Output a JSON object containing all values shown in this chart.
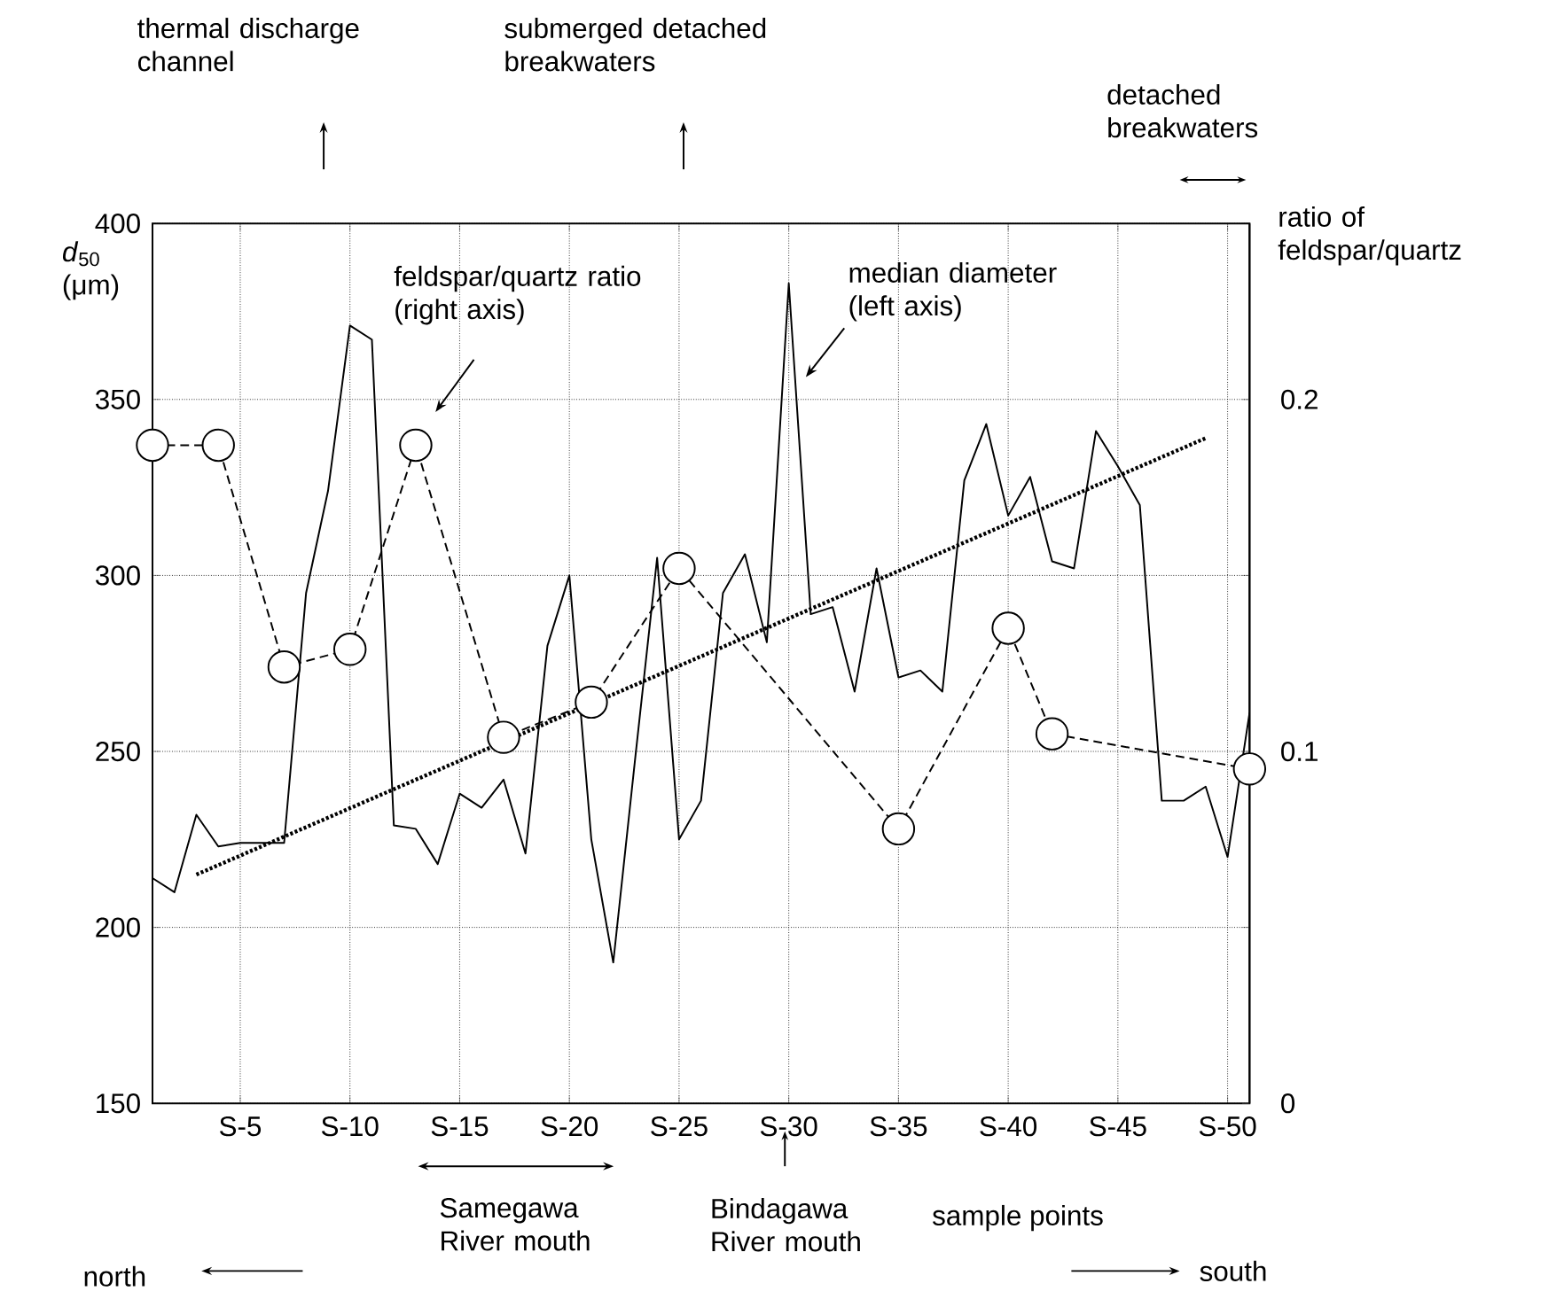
{
  "chart_data": {
    "type": "line",
    "xlabel": "sample points",
    "ylabel": "*d*$_{50}$ (μm)",
    "y2label": "ratio of feldspar/quartz",
    "categories": [
      null,
      null,
      null,
      null,
      "S-5",
      null,
      null,
      null,
      null,
      "S-10",
      null,
      null,
      null,
      null,
      "S-15",
      null,
      null,
      null,
      null,
      "S-20",
      null,
      null,
      null,
      null,
      "S-25",
      null,
      null,
      null,
      null,
      "S-30",
      null,
      null,
      null,
      null,
      "S-35",
      null,
      null,
      null,
      null,
      "S-40",
      null,
      null,
      null,
      null,
      "S-45",
      null,
      null,
      null,
      null,
      "S-50",
      null
    ],
    "series": [
      {
        "color": "#000000",
        "line_style": "solid",
        "marker": "none",
        "values": [
          214,
          210,
          232,
          223,
          224,
          224,
          224,
          295,
          324,
          371,
          367,
          229,
          228,
          218,
          238,
          234,
          242,
          221,
          280,
          300,
          225,
          190,
          248,
          305,
          225,
          236,
          295,
          306,
          281,
          383,
          289,
          291,
          267,
          302,
          271,
          273,
          267,
          327,
          343,
          317,
          328,
          304,
          302,
          341,
          331,
          320,
          236,
          236,
          240,
          220,
          261
        ]
      },
      {
        "color": "#000000",
        "line_style": "dashed",
        "marker": "circle",
        "axis": "y2",
        "values": [
          0.187,
          null,
          null,
          0.187,
          null,
          null,
          0.124,
          null,
          null,
          0.129,
          null,
          null,
          0.187,
          null,
          null,
          null,
          0.104,
          null,
          null,
          null,
          0.114,
          null,
          null,
          null,
          0.152,
          null,
          null,
          null,
          null,
          null,
          null,
          null,
          null,
          null,
          0.078,
          null,
          null,
          null,
          null,
          0.135,
          null,
          0.105,
          null,
          null,
          null,
          null,
          null,
          null,
          null,
          null,
          0.095
        ]
      },
      {
        "color": "#000000",
        "line_style": "dotted",
        "marker": "none",
        "values": [
          null,
          null,
          215,
          null,
          null,
          null,
          null,
          null,
          null,
          null,
          null,
          null,
          null,
          null,
          null,
          null,
          null,
          null,
          null,
          null,
          null,
          null,
          null,
          null,
          null,
          null,
          null,
          null,
          null,
          null,
          null,
          null,
          null,
          null,
          null,
          null,
          null,
          null,
          null,
          null,
          null,
          null,
          null,
          null,
          null,
          null,
          null,
          null,
          339,
          null,
          null
        ]
      }
    ],
    "ylim": [
      150,
      400
    ],
    "y2lim": [
      0,
      0.25
    ],
    "yticks": [
      150,
      200,
      250,
      300,
      350,
      400
    ],
    "y2ticks": [
      0,
      0.1,
      0.2
    ],
    "grid": true,
    "annotations": [
      "thermal discharge channel",
      "submerged detached breakwaters",
      "detached breakwaters",
      "feldspar/quartz ratio (right axis)",
      "median diameter (left axis)",
      "Samegawa River mouth",
      "Bindagawa River mouth",
      "north",
      "south"
    ]
  }
}
